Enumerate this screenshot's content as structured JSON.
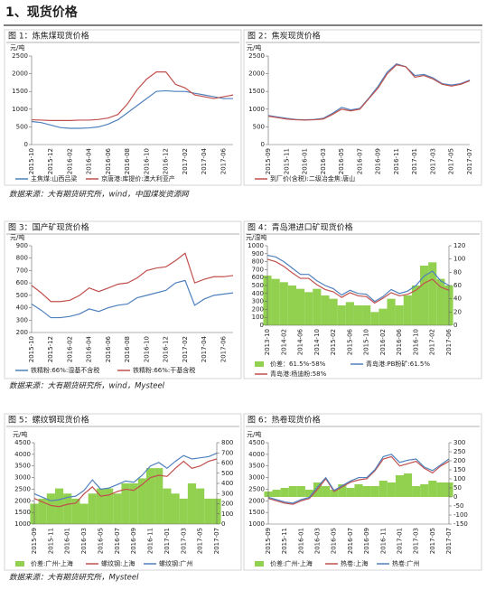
{
  "header": {
    "title": "1、现货价格"
  },
  "sources": [
    "数据来源：大有期货研究所，wind，中国煤炭资源网",
    "数据来源：大有期货研究所，wind，Mysteel",
    "数据来源：大有期货研究所，Mysteel"
  ],
  "chart_data": [
    {
      "type": "line",
      "title": "图 1：炼焦煤现货价格",
      "ylabel": "元/吨",
      "categories": [
        "2015-10",
        null,
        "2015-12",
        null,
        "2016-02",
        null,
        "2016-04",
        null,
        "2016-06",
        null,
        "2016-08",
        null,
        "2016-10",
        null,
        "2016-12",
        null,
        "2017-02",
        null,
        "2017-04",
        null,
        "2017-06",
        null
      ],
      "ylim": [
        0,
        2500
      ],
      "yticks": [
        0,
        500,
        1000,
        1500,
        2000,
        2500
      ],
      "series": [
        {
          "name": "主焦煤:山西吕梁",
          "color": "#4f81bd",
          "values": [
            650,
            620,
            550,
            480,
            460,
            460,
            470,
            500,
            580,
            700,
            900,
            1100,
            1300,
            1500,
            1520,
            1500,
            1500,
            1450,
            1400,
            1350,
            1300,
            1300
          ]
        },
        {
          "name": "京唐港:库提价:澳大利亚产",
          "color": "#c0504d",
          "values": [
            700,
            690,
            680,
            680,
            680,
            690,
            690,
            710,
            750,
            850,
            1150,
            1550,
            1850,
            2050,
            2050,
            1700,
            1600,
            1400,
            1350,
            1300,
            1350,
            1400
          ]
        }
      ]
    },
    {
      "type": "line",
      "title": "图 2：焦炭现货价格",
      "ylabel": "元/吨",
      "categories": [
        "2015-09",
        null,
        "2015-11",
        null,
        "2016-01",
        null,
        "2016-03",
        null,
        "2016-05",
        null,
        "2016-07",
        null,
        "2016-09",
        null,
        "2016-11",
        null,
        "2017-01",
        null,
        "2017-03",
        null,
        "2017-05",
        null,
        "2017-07"
      ],
      "ylim": [
        0,
        2500
      ],
      "yticks": [
        0,
        500,
        1000,
        1500,
        2000,
        2500
      ],
      "series": [
        {
          "color": "#4f81bd",
          "values": [
            820,
            780,
            740,
            710,
            700,
            710,
            740,
            880,
            1050,
            980,
            1020,
            1320,
            1650,
            2050,
            2280,
            2200,
            1950,
            1980,
            1880,
            1720,
            1680,
            1720,
            1820
          ]
        },
        {
          "name": "到厂价(含税):二级冶金焦:唐山",
          "color": "#c0504d",
          "values": [
            800,
            760,
            720,
            700,
            690,
            700,
            720,
            850,
            1000,
            950,
            1000,
            1300,
            1600,
            2000,
            2250,
            2200,
            1900,
            1950,
            1850,
            1700,
            1650,
            1700,
            1800
          ]
        }
      ]
    },
    {
      "type": "line",
      "title": "图 3：国产矿现货价格",
      "ylabel": "元/吨",
      "categories": [
        "2015-10",
        null,
        "2015-12",
        null,
        "2016-02",
        null,
        "2016-04",
        null,
        "2016-06",
        null,
        "2016-08",
        null,
        "2016-10",
        null,
        "2016-12",
        null,
        "2017-02",
        null,
        "2017-04",
        null,
        "2017-06",
        null
      ],
      "ylim": [
        200,
        900
      ],
      "yticks": [
        200,
        300,
        400,
        500,
        600,
        700,
        800,
        900
      ],
      "series": [
        {
          "name": "铁精粉:66%:湿基不含税",
          "color": "#4f81bd",
          "values": [
            430,
            380,
            320,
            320,
            330,
            350,
            390,
            370,
            400,
            420,
            430,
            480,
            500,
            520,
            540,
            600,
            620,
            420,
            470,
            500,
            510,
            520
          ]
        },
        {
          "name": "铁精粉:66%:干基含税",
          "color": "#c0504d",
          "values": [
            580,
            520,
            450,
            450,
            460,
            500,
            560,
            530,
            560,
            590,
            600,
            640,
            700,
            720,
            730,
            780,
            840,
            600,
            630,
            650,
            650,
            660
          ]
        }
      ]
    },
    {
      "type": "line",
      "title": "图 4：青岛港进口矿现货价格",
      "ylabel": "元/湿吨",
      "categories": [
        "2013-10",
        null,
        "2014-02",
        null,
        "2014-06",
        null,
        "2014-10",
        null,
        "2015-02",
        null,
        "2015-06",
        null,
        "2015-10",
        null,
        "2016-02",
        null,
        "2016-06",
        null,
        "2016-10",
        null,
        "2017-02",
        null,
        "2017-06"
      ],
      "ylim": [
        0,
        1000
      ],
      "yticks": [
        0,
        100,
        200,
        300,
        400,
        500,
        600,
        700,
        800,
        900,
        1000
      ],
      "y2lim": [
        0,
        120
      ],
      "y2ticks": [
        0,
        20,
        40,
        60,
        80,
        100,
        120
      ],
      "series": [
        {
          "name": "价差：61.5%-58%",
          "color": "#92d050",
          "type": "area",
          "axis": "y2",
          "values": [
            75,
            70,
            65,
            60,
            55,
            50,
            55,
            45,
            40,
            30,
            35,
            30,
            30,
            20,
            25,
            40,
            30,
            45,
            60,
            90,
            95,
            70,
            60
          ]
        },
        {
          "name": "青岛港:PB粉矿:61.5%",
          "color": "#4f81bd",
          "values": [
            880,
            860,
            800,
            720,
            640,
            640,
            560,
            500,
            460,
            380,
            440,
            400,
            390,
            300,
            360,
            450,
            400,
            430,
            500,
            620,
            680,
            560,
            500
          ]
        },
        {
          "name": "青岛港:杨迪粉:58%",
          "color": "#c0504d",
          "values": [
            830,
            800,
            740,
            660,
            590,
            590,
            510,
            450,
            420,
            350,
            410,
            370,
            360,
            280,
            340,
            410,
            370,
            390,
            440,
            530,
            580,
            480,
            440
          ]
        }
      ]
    },
    {
      "type": "line",
      "title": "图 5：螺纹钢现货价格",
      "ylabel": "元/吨",
      "categories": [
        "2015-09",
        null,
        "2015-11",
        null,
        "2016-01",
        null,
        "2016-03",
        null,
        "2016-05",
        null,
        "2016-07",
        null,
        "2016-09",
        null,
        "2016-11",
        null,
        "2017-01",
        null,
        "2017-03",
        null,
        "2017-05",
        null,
        "2017-07"
      ],
      "ylim": [
        1000,
        4500
      ],
      "yticks": [
        1000,
        1500,
        2000,
        2500,
        3000,
        3500,
        4000,
        4500
      ],
      "y2lim": [
        0,
        800
      ],
      "y2ticks": [
        0,
        100,
        200,
        300,
        400,
        500,
        600,
        700,
        800
      ],
      "series": [
        {
          "name": "价差:广州-上海",
          "color": "#92d050",
          "type": "area",
          "axis": "y2",
          "values": [
            200,
            250,
            300,
            350,
            300,
            250,
            200,
            300,
            350,
            350,
            300,
            400,
            400,
            450,
            550,
            550,
            350,
            300,
            250,
            400,
            350,
            250,
            250
          ]
        },
        {
          "name": "螺纹钢:上海",
          "color": "#c0504d",
          "values": [
            2100,
            1950,
            1800,
            1750,
            1850,
            1900,
            2300,
            2600,
            2200,
            2250,
            2400,
            2500,
            2450,
            2700,
            3000,
            3100,
            3050,
            3400,
            3700,
            3400,
            3500,
            3700,
            3800
          ]
        },
        {
          "name": "螺纹钢:广州",
          "color": "#4f81bd",
          "values": [
            2300,
            2150,
            2000,
            2050,
            2150,
            2200,
            2450,
            2900,
            2500,
            2550,
            2700,
            2850,
            2800,
            3100,
            3500,
            3650,
            3400,
            3700,
            3950,
            3800,
            3850,
            3900,
            4050
          ]
        }
      ]
    },
    {
      "type": "line",
      "title": "图 6：热卷现货价格",
      "ylabel": "元/吨",
      "categories": [
        "2015-09",
        null,
        "2015-11",
        null,
        "2016-01",
        null,
        "2016-03",
        null,
        "2016-05",
        null,
        "2016-07",
        null,
        "2016-09",
        null,
        "2016-11",
        null,
        "2017-01",
        null,
        "2017-03",
        null,
        "2017-05",
        null,
        "2017-07"
      ],
      "ylim": [
        1000,
        4500
      ],
      "yticks": [
        1000,
        1500,
        2000,
        2500,
        3000,
        3500,
        4000,
        4500
      ],
      "y2lim": [
        -150,
        300
      ],
      "y2ticks": [
        -150,
        -100,
        -50,
        0,
        50,
        100,
        150,
        200,
        250,
        300
      ],
      "series": [
        {
          "name": "价差:广州-上海",
          "color": "#92d050",
          "type": "area",
          "axis": "y2",
          "values": [
            30,
            40,
            50,
            60,
            60,
            40,
            80,
            60,
            40,
            70,
            50,
            70,
            60,
            60,
            90,
            80,
            120,
            130,
            60,
            70,
            90,
            80,
            80
          ]
        },
        {
          "name": "热卷:上海",
          "color": "#c0504d",
          "values": [
            2100,
            2000,
            1900,
            1850,
            2000,
            2100,
            2500,
            2950,
            2400,
            2600,
            2800,
            2900,
            2950,
            3300,
            3800,
            3900,
            3500,
            3600,
            3700,
            3400,
            3200,
            3500,
            3700
          ]
        },
        {
          "name": "热卷:广州",
          "color": "#4f81bd",
          "values": [
            2150,
            2050,
            1950,
            1900,
            2050,
            2150,
            2600,
            3000,
            2450,
            2650,
            2850,
            3000,
            3000,
            3350,
            3900,
            4000,
            3650,
            3750,
            3800,
            3450,
            3300,
            3550,
            3800
          ]
        }
      ]
    }
  ]
}
